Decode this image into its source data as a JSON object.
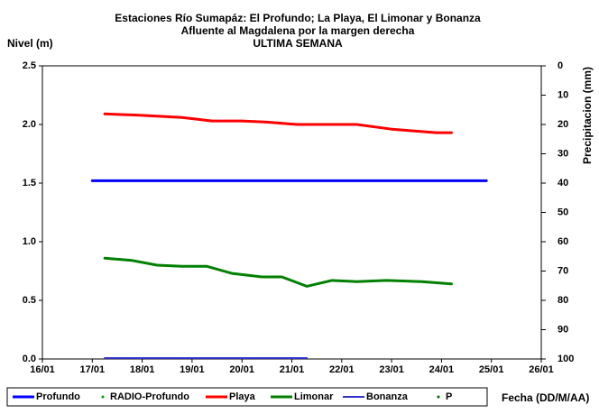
{
  "chart_data": {
    "type": "line",
    "title": "Estaciones Río Sumapáz: El Profundo; La Playa, El Limonar y Bonanza",
    "subtitle": "Afluente al Magdalena por la margen derecha",
    "subtitle2": "ULTIMA SEMANA",
    "ylabel": "Nivel (m)",
    "y2label": "Precipitacion (mm)",
    "xlabel": "Fecha (DD/M/AA)",
    "xlim": [
      16,
      26
    ],
    "xticks": [
      {
        "value": 16,
        "label": "16/01"
      },
      {
        "value": 17,
        "label": "17/01"
      },
      {
        "value": 18,
        "label": "18/01"
      },
      {
        "value": 19,
        "label": "19/01"
      },
      {
        "value": 20,
        "label": "20/01"
      },
      {
        "value": 21,
        "label": "21/01"
      },
      {
        "value": 22,
        "label": "22/01"
      },
      {
        "value": 23,
        "label": "23/01"
      },
      {
        "value": 24,
        "label": "24/01"
      },
      {
        "value": 25,
        "label": "25/01"
      },
      {
        "value": 26,
        "label": "26/01"
      }
    ],
    "ylim": [
      0,
      2.5
    ],
    "yticks": [
      {
        "value": 0,
        "label": "0.0"
      },
      0.5,
      {
        "value": 1,
        "label": "1.0"
      },
      1.5,
      {
        "value": 2,
        "label": "2.0"
      },
      2.5
    ],
    "y2lim": [
      100,
      0
    ],
    "y2ticks": [
      0,
      10,
      20,
      30,
      40,
      50,
      60,
      70,
      80,
      90,
      100
    ],
    "series": [
      {
        "name": "Profundo",
        "color": "#0000ff",
        "style": "line",
        "width": 3,
        "x": [
          17.0,
          24.9
        ],
        "values": [
          1.52,
          1.52
        ]
      },
      {
        "name": "RADIO-Profundo",
        "color": "#009900",
        "style": "dots",
        "x": [],
        "values": []
      },
      {
        "name": "Playa",
        "color": "#ff0000",
        "style": "line",
        "width": 3,
        "x": [
          17.25,
          17.9,
          18.8,
          19.4,
          20.0,
          20.5,
          21.1,
          22.3,
          23.0,
          23.9,
          24.2
        ],
        "values": [
          2.09,
          2.08,
          2.06,
          2.03,
          2.03,
          2.02,
          2.0,
          2.0,
          1.96,
          1.93,
          1.93
        ]
      },
      {
        "name": "Limonar",
        "color": "#008000",
        "style": "line",
        "width": 3,
        "x": [
          17.25,
          17.8,
          18.3,
          18.8,
          19.3,
          19.8,
          20.4,
          20.8,
          21.3,
          21.8,
          22.3,
          22.9,
          23.6,
          24.2
        ],
        "values": [
          0.86,
          0.84,
          0.8,
          0.79,
          0.79,
          0.73,
          0.7,
          0.7,
          0.62,
          0.67,
          0.66,
          0.67,
          0.66,
          0.64
        ]
      },
      {
        "name": "Bonanza",
        "color": "#3333cc",
        "style": "line",
        "width": 2,
        "x": [
          17.25,
          21.3
        ],
        "values": [
          0.0,
          0.0
        ]
      },
      {
        "name": "P",
        "color": "#006600",
        "style": "dots",
        "x": [],
        "values": []
      }
    ]
  }
}
